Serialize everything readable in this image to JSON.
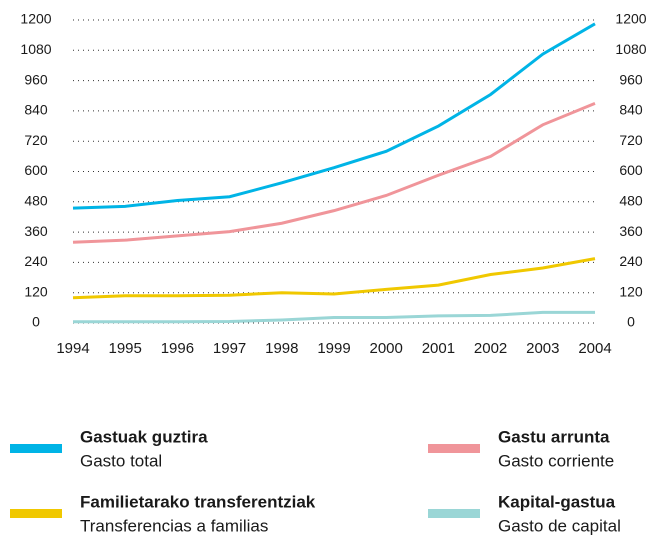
{
  "chart_data": {
    "type": "line",
    "x": [
      "1994",
      "1995",
      "1996",
      "1997",
      "1998",
      "1999",
      "2000",
      "2001",
      "2002",
      "2003",
      "2004"
    ],
    "ylim": [
      0,
      1200
    ],
    "yticks": [
      0,
      120,
      240,
      360,
      480,
      600,
      720,
      840,
      960,
      1080,
      1200
    ],
    "grid": true,
    "series": [
      {
        "name": "Gastuak guztira",
        "subname": "Gasto total",
        "color": "#00b4e6",
        "values": [
          455,
          462,
          485,
          500,
          555,
          615,
          680,
          780,
          905,
          1065,
          1185
        ]
      },
      {
        "name": "Gastu arrunta",
        "subname": "Gasto corriente",
        "color": "#f0959a",
        "values": [
          320,
          328,
          345,
          362,
          395,
          445,
          505,
          585,
          660,
          785,
          870
        ]
      },
      {
        "name": "Familietarako transferentziak",
        "subname": "Transferencias a familias",
        "color": "#f0c800",
        "values": [
          100,
          108,
          108,
          110,
          120,
          115,
          133,
          150,
          192,
          218,
          255
        ]
      },
      {
        "name": "Kapital-gastua",
        "subname": "Gasto de capital",
        "color": "#9ad6d6",
        "values": [
          5,
          5,
          5,
          6,
          12,
          22,
          22,
          28,
          30,
          42,
          42
        ]
      }
    ]
  }
}
